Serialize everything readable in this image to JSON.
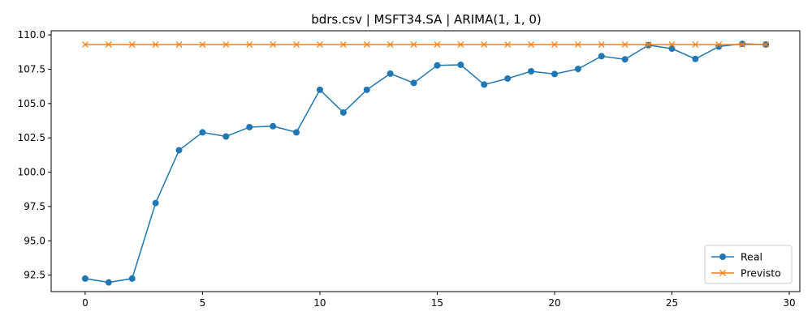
{
  "chart_data": {
    "type": "line",
    "title": "bdrs.csv | MSFT34.SA | ARIMA(1, 1, 0)",
    "xlabel": "",
    "ylabel": "",
    "xlim": [
      -1.45,
      30.45
    ],
    "ylim": [
      91.3,
      110.3
    ],
    "xticks": [
      0,
      5,
      10,
      15,
      20,
      25,
      30
    ],
    "yticks": [
      92.5,
      95.0,
      97.5,
      100.0,
      102.5,
      105.0,
      107.5,
      110.0
    ],
    "ytick_labels": [
      "92.5",
      "95.0",
      "97.5",
      "100.0",
      "102.5",
      "105.0",
      "107.5",
      "110.0"
    ],
    "grid": false,
    "legend_position": "lower right",
    "x": [
      0,
      1,
      2,
      3,
      4,
      5,
      6,
      7,
      8,
      9,
      10,
      11,
      12,
      13,
      14,
      15,
      16,
      17,
      18,
      19,
      20,
      21,
      22,
      23,
      24,
      25,
      26,
      27,
      28,
      29
    ],
    "series": [
      {
        "name": "Real",
        "color": "#1f77b4",
        "marker": "circle",
        "values": [
          92.25,
          91.97,
          92.25,
          97.75,
          101.6,
          102.9,
          102.6,
          103.28,
          103.35,
          102.9,
          106.0,
          104.35,
          106.0,
          107.18,
          106.5,
          107.78,
          107.82,
          106.38,
          106.82,
          107.35,
          107.15,
          107.52,
          108.45,
          108.22,
          109.25,
          109.0,
          108.25,
          109.15,
          109.35,
          109.3
        ]
      },
      {
        "name": "Previsto",
        "color": "#ff7f0e",
        "marker": "x",
        "values": [
          109.3,
          109.3,
          109.3,
          109.3,
          109.3,
          109.3,
          109.3,
          109.3,
          109.3,
          109.3,
          109.3,
          109.3,
          109.3,
          109.3,
          109.3,
          109.3,
          109.3,
          109.3,
          109.3,
          109.3,
          109.3,
          109.3,
          109.3,
          109.3,
          109.3,
          109.3,
          109.3,
          109.3,
          109.3,
          109.3
        ]
      }
    ]
  }
}
